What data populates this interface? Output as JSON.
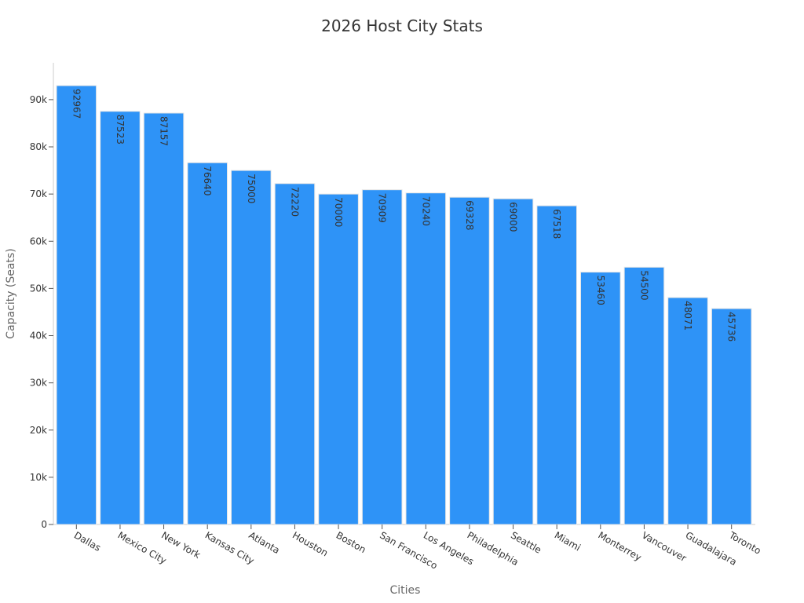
{
  "chart_data": {
    "type": "bar",
    "title": "2026 Host City Stats",
    "xlabel": "Cities",
    "ylabel": "Capacity (Seats)",
    "categories": [
      "Dallas",
      "Mexico City",
      "New York",
      "Kansas City",
      "Atlanta",
      "Houston",
      "Boston",
      "San Francisco",
      "Los Angeles",
      "Philadelphia",
      "Seattle",
      "Miami",
      "Monterrey",
      "Vancouver",
      "Guadalajara",
      "Toronto"
    ],
    "values": [
      92967,
      87523,
      87157,
      76640,
      75000,
      72220,
      70000,
      70909,
      70240,
      69328,
      69000,
      67518,
      53460,
      54500,
      48071,
      45736
    ],
    "ylim": [
      0,
      97800
    ],
    "yticks": [
      0,
      10000,
      20000,
      30000,
      40000,
      50000,
      60000,
      70000,
      80000,
      90000
    ],
    "ytick_labels": [
      "0",
      "10k",
      "20k",
      "30k",
      "40k",
      "50k",
      "60k",
      "70k",
      "80k",
      "90k"
    ],
    "grid": false,
    "legend": "none",
    "colors": {
      "bar_fill": "#2e93f7",
      "bar_stroke": "#e6e6e6",
      "text": "#333333",
      "axis_title": "#666666",
      "axis_line": "#cccccc"
    }
  }
}
